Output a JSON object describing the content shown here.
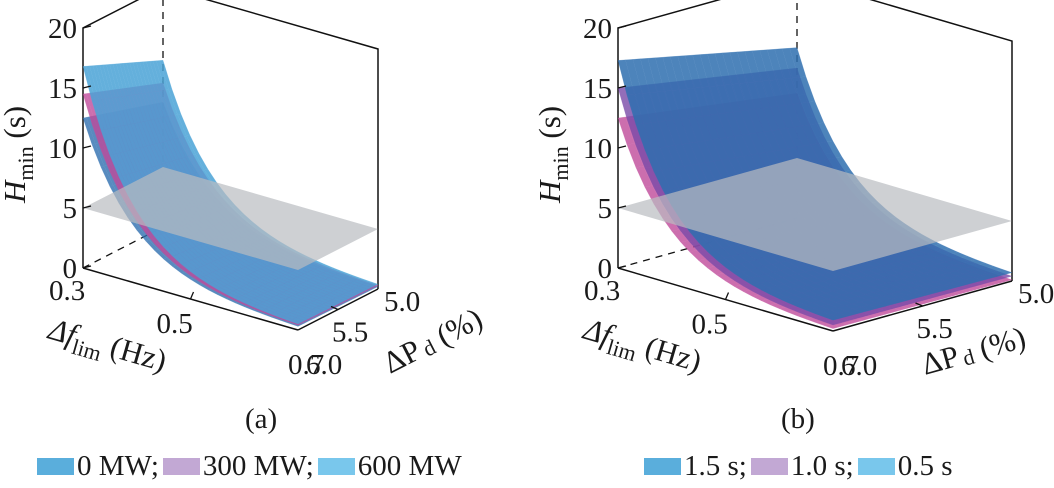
{
  "chart_data": [
    {
      "type": "surface3d",
      "panel_label": "(a)",
      "zlabel": "H",
      "zlabel_sub": "min",
      "zlabel_unit": " (s)",
      "xlabel": "Δf",
      "xlabel_sub": "lim",
      "xlabel_unit": " (Hz)",
      "ylabel": "ΔP",
      "ylabel_sub": "d",
      "ylabel_unit": " (%)",
      "x_ticks": [
        "0.3",
        "0.5",
        "0.7"
      ],
      "x_range": [
        0.3,
        0.7
      ],
      "y_ticks": [
        "5.0",
        "5.5",
        "6.0"
      ],
      "y_range": [
        5.0,
        6.0
      ],
      "z_ticks": [
        "0",
        "5",
        "10",
        "15",
        "20"
      ],
      "zlim": [
        0,
        20
      ],
      "reference_plane": {
        "z": 5,
        "color": "#b9bcc0"
      },
      "series": [
        {
          "name": "0 MW",
          "color": "#5aaedc",
          "surface_color": "#2f6fb0",
          "corner_values": {
            "x0.3_y6.0": 12.5,
            "x0.3_y5.0": 10.4,
            "x0.7_y6.0": 0.3,
            "x0.7_y5.0": 0.2
          }
        },
        {
          "name": "300 MW",
          "color": "#c2a8d4",
          "surface_color": "#c04a9a",
          "corner_values": {
            "x0.3_y6.0": 14.5,
            "x0.3_y5.0": 12.0,
            "x0.7_y6.0": 0.4,
            "x0.7_y5.0": 0.3
          }
        },
        {
          "name": "600 MW",
          "color": "#79c7ec",
          "surface_color": "#4aa3d6",
          "corner_values": {
            "x0.3_y6.0": 16.8,
            "x0.3_y5.0": 13.9,
            "x0.7_y6.0": 0.5,
            "x0.7_y5.0": 0.4
          }
        }
      ]
    },
    {
      "type": "surface3d",
      "panel_label": "(b)",
      "zlabel": "H",
      "zlabel_sub": "min",
      "zlabel_unit": " (s)",
      "xlabel": "Δf",
      "xlabel_sub": "lim",
      "xlabel_unit": " (Hz)",
      "ylabel": "ΔP",
      "ylabel_sub": "d",
      "ylabel_unit": " (%)",
      "x_ticks": [
        "0.3",
        "0.5",
        "0.7"
      ],
      "x_range": [
        0.3,
        0.7
      ],
      "y_ticks": [
        "5.0",
        "5.5",
        "6.0"
      ],
      "y_range": [
        5.0,
        6.0
      ],
      "z_ticks": [
        "0",
        "5",
        "10",
        "15",
        "20"
      ],
      "zlim": [
        0,
        20
      ],
      "reference_plane": {
        "z": 5,
        "color": "#b9bcc0"
      },
      "series": [
        {
          "name": "1.5 s",
          "color": "#5aaedc",
          "surface_color": "#c04a9a",
          "corner_values": {
            "x0.3_y6.0": 12.5,
            "x0.3_y5.0": 10.4,
            "x0.7_y6.0": 0.2,
            "x0.7_y5.0": 0.1
          }
        },
        {
          "name": "1.0 s",
          "color": "#c2a8d4",
          "surface_color": "#7a4aa8",
          "corner_values": {
            "x0.3_y6.0": 15.0,
            "x0.3_y5.0": 12.5,
            "x0.7_y6.0": 0.5,
            "x0.7_y5.0": 0.4
          }
        },
        {
          "name": "0.5 s",
          "color": "#79c7ec",
          "surface_color": "#2f6fb0",
          "corner_values": {
            "x0.3_y6.0": 17.3,
            "x0.3_y5.0": 14.2,
            "x0.7_y6.0": 0.9,
            "x0.7_y5.0": 0.7
          }
        }
      ]
    }
  ],
  "legends": [
    [
      {
        "label": "0 MW;",
        "color": "#5aaedc"
      },
      {
        "label": "300 MW;",
        "color": "#c2a8d4"
      },
      {
        "label": "600 MW",
        "color": "#79c7ec"
      }
    ],
    [
      {
        "label": "1.5 s;",
        "color": "#5aaedc"
      },
      {
        "label": "1.0 s;",
        "color": "#c2a8d4"
      },
      {
        "label": "0.5 s",
        "color": "#79c7ec"
      }
    ]
  ]
}
